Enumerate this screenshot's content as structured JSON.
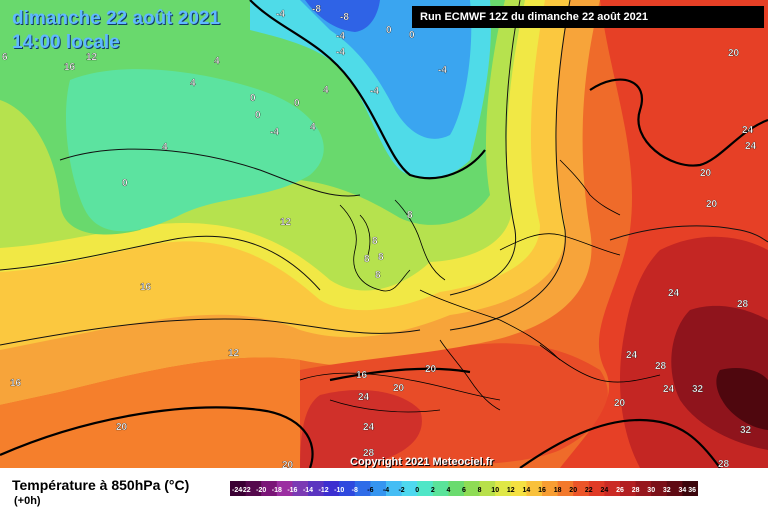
{
  "header": {
    "date": "dimanche 22 août 2021",
    "time": "14:00 locale",
    "run": "Run ECMWF 12Z du dimanche 22 août 2021"
  },
  "footer": {
    "copyright": "Copyright 2021 Meteociel.fr",
    "title": "Température à 850hPa (°C)",
    "subtitle": "(+0h)"
  },
  "legend": {
    "ticks": [
      "-24",
      "-22",
      "-20",
      "-18",
      "-16",
      "-14",
      "-12",
      "-10",
      "-8",
      "-6",
      "-4",
      "-2",
      "0",
      "2",
      "4",
      "6",
      "8",
      "10",
      "12",
      "14",
      "16",
      "18",
      "20",
      "22",
      "24",
      "26",
      "28",
      "30",
      "32",
      "34",
      "36"
    ],
    "colors": [
      "#3a0033",
      "#55094d",
      "#7a1577",
      "#9b2ea1",
      "#7b3ab4",
      "#5a34c0",
      "#3c2ed0",
      "#2f49de",
      "#2f6ce8",
      "#3595f0",
      "#45bdf4",
      "#4ed8ef",
      "#4fe6c7",
      "#5ae39a",
      "#6adb6e",
      "#8edc55",
      "#b8e04a",
      "#dfe847",
      "#f5e142",
      "#f9c13b",
      "#f89e33",
      "#f3792c",
      "#ec5529",
      "#e03a26",
      "#cb2a24",
      "#b21f22",
      "#96161d",
      "#7b1018",
      "#5f0a13",
      "#3b050b"
    ]
  },
  "map_labels": [
    {
      "text": "-4"
    },
    {
      "text": "-8"
    },
    {
      "text": "-8"
    },
    {
      "text": "-4"
    },
    {
      "text": "-4"
    },
    {
      "text": "0"
    },
    {
      "text": "0"
    },
    {
      "text": "-4"
    },
    {
      "text": "-4"
    },
    {
      "text": "16"
    },
    {
      "text": "6"
    },
    {
      "text": "12"
    },
    {
      "text": "4"
    },
    {
      "text": "4"
    },
    {
      "text": "0"
    },
    {
      "text": "0"
    },
    {
      "text": "0"
    },
    {
      "text": "-4"
    },
    {
      "text": "4"
    },
    {
      "text": "4"
    },
    {
      "text": "4"
    },
    {
      "text": "0"
    },
    {
      "text": "12"
    },
    {
      "text": "8"
    },
    {
      "text": "8"
    },
    {
      "text": "8"
    },
    {
      "text": "8"
    },
    {
      "text": "8"
    },
    {
      "text": "16"
    },
    {
      "text": "12"
    },
    {
      "text": "16"
    },
    {
      "text": "20"
    },
    {
      "text": "20"
    },
    {
      "text": "24"
    },
    {
      "text": "20"
    },
    {
      "text": "20"
    },
    {
      "text": "16"
    },
    {
      "text": "24"
    },
    {
      "text": "28"
    },
    {
      "text": "20"
    },
    {
      "text": "20"
    },
    {
      "text": "24"
    },
    {
      "text": "24"
    },
    {
      "text": "20"
    },
    {
      "text": "20"
    },
    {
      "text": "24"
    },
    {
      "text": "28"
    },
    {
      "text": "24"
    },
    {
      "text": "28"
    },
    {
      "text": "24"
    },
    {
      "text": "32"
    },
    {
      "text": "32"
    },
    {
      "text": "28"
    }
  ]
}
